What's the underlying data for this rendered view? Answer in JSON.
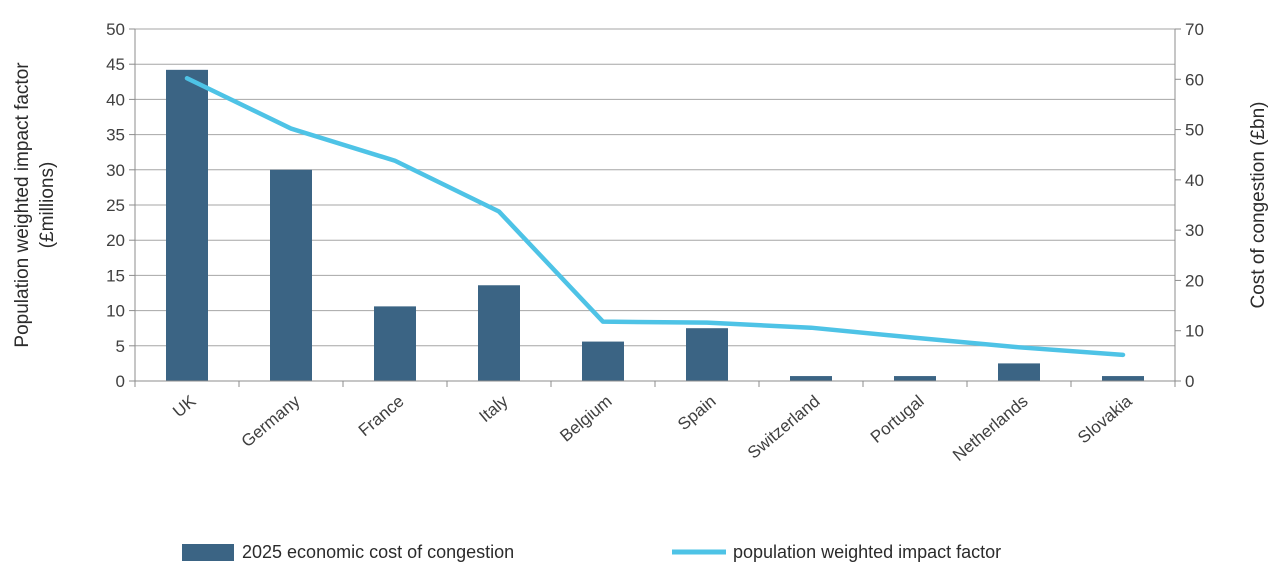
{
  "chart_data": {
    "type": "bar",
    "categories": [
      "UK",
      "Germany",
      "France",
      "Italy",
      "Belgium",
      "Spain",
      "Switzerland",
      "Portugal",
      "Netherlands",
      "Slovakia"
    ],
    "series": [
      {
        "name": "2025 economic cost of congestion",
        "type": "bar",
        "axis": "left",
        "color": "#3b6484",
        "values": [
          44.2,
          30.0,
          10.6,
          13.6,
          5.6,
          7.5,
          0.7,
          0.7,
          2.5,
          0.7
        ]
      },
      {
        "name": "population weighted impact factor",
        "type": "line",
        "axis": "right",
        "color": "#4ec3e6",
        "values": [
          60.2,
          50.2,
          43.8,
          33.7,
          11.8,
          11.6,
          10.6,
          8.6,
          6.7,
          5.2
        ]
      }
    ],
    "y_left": {
      "label_line1": "Population weighted impact factor",
      "label_line2": "(£millions)",
      "lim": [
        0,
        50
      ],
      "ticks": [
        "0",
        "5",
        "10",
        "15",
        "20",
        "25",
        "30",
        "35",
        "40",
        "45",
        "50"
      ]
    },
    "y_right": {
      "label": "Cost of congestion (£bn)",
      "lim": [
        0,
        70
      ],
      "ticks": [
        "0",
        "10",
        "20",
        "30",
        "40",
        "50",
        "60",
        "70"
      ]
    },
    "grid": true,
    "legend_position": "bottom"
  }
}
